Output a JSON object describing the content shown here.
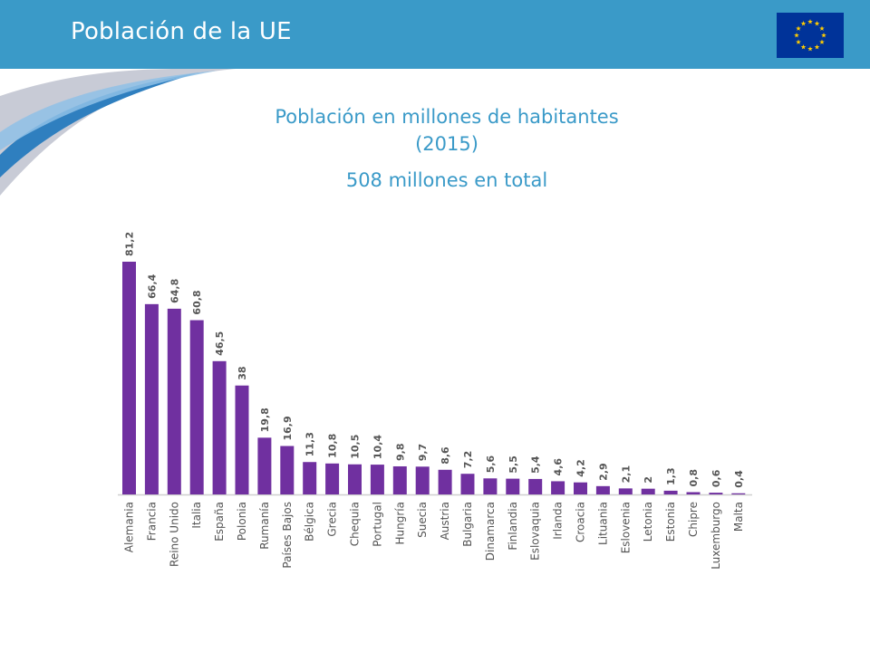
{
  "slide": {
    "title": "Población de la UE",
    "subtitle": "Población en millones de habitantes (2015)",
    "total": "508 millones en total"
  },
  "header_icon": "eu-flag-icon",
  "colors": {
    "header": "#3a9ac8",
    "bar": "#7030a0",
    "text_accent": "#3a9ac8",
    "flag_blue": "#003399",
    "flag_star": "#ffcc00"
  },
  "chart_data": {
    "type": "bar",
    "categories": [
      "Alemania",
      "Francia",
      "Reino Unido",
      "Italia",
      "España",
      "Polonia",
      "Rumanía",
      "Países Bajos",
      "Bélgica",
      "Grecia",
      "Chequia",
      "Portugal",
      "Hungría",
      "Suecia",
      "Austria",
      "Bulgaria",
      "Dinamarca",
      "Finlandia",
      "Eslovaquia",
      "Irlanda",
      "Croacia",
      "Lituania",
      "Eslovenia",
      "Letonia",
      "Estonia",
      "Chipre",
      "Luxemburgo",
      "Malta"
    ],
    "values": [
      81.2,
      66.4,
      64.8,
      60.8,
      46.5,
      38,
      19.8,
      16.9,
      11.3,
      10.8,
      10.5,
      10.4,
      9.8,
      9.7,
      8.6,
      7.2,
      5.6,
      5.5,
      5.4,
      4.6,
      4.2,
      2.9,
      2.1,
      2,
      1.3,
      0.8,
      0.6,
      0.4
    ],
    "labels": [
      "81,2",
      "66,4",
      "64,8",
      "60,8",
      "46,5",
      "38",
      "19,8",
      "16,9",
      "11,3",
      "10,8",
      "10,5",
      "10,4",
      "9,8",
      "9,7",
      "8,6",
      "7,2",
      "5,6",
      "5,5",
      "5,4",
      "4,6",
      "4,2",
      "2,9",
      "2,1",
      "2",
      "1,3",
      "0,8",
      "0,6",
      "0,4"
    ],
    "ylim": [
      0,
      81.2
    ],
    "grid": false,
    "legend": "none"
  }
}
